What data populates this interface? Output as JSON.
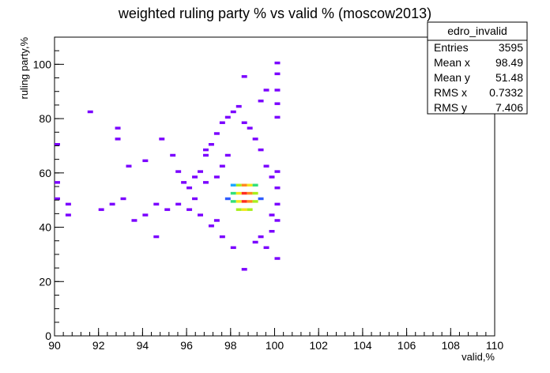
{
  "chart_data": {
    "type": "heatmap",
    "title": "weighted ruling party % vs valid % (moscow2013)",
    "xlabel": "valid,%",
    "ylabel": "ruling party,%",
    "xlim": [
      90,
      110
    ],
    "ylim": [
      0,
      110
    ],
    "x_ticks": [
      "90",
      "92",
      "94",
      "96",
      "98",
      "100",
      "102",
      "104",
      "106",
      "108",
      "110"
    ],
    "y_ticks": [
      "0",
      "20",
      "40",
      "60",
      "80",
      "100"
    ],
    "grid": false,
    "legend": "none",
    "bin_width_x": 0.25,
    "bin_width_y": 1.0,
    "cells": [
      [
        98.0,
        55,
        4
      ],
      [
        98.25,
        55,
        6
      ],
      [
        98.5,
        55,
        8
      ],
      [
        98.75,
        55,
        7
      ],
      [
        99.0,
        55,
        5
      ],
      [
        98.0,
        52,
        5
      ],
      [
        98.25,
        52,
        7
      ],
      [
        98.5,
        52,
        9
      ],
      [
        98.75,
        52,
        8
      ],
      [
        99.0,
        52,
        6
      ],
      [
        98.0,
        49,
        5
      ],
      [
        98.25,
        49,
        7
      ],
      [
        98.5,
        49,
        9
      ],
      [
        98.75,
        49,
        8
      ],
      [
        99.0,
        49,
        6
      ],
      [
        98.25,
        46,
        6
      ],
      [
        98.5,
        46,
        7
      ],
      [
        98.75,
        46,
        6
      ],
      [
        97.75,
        50,
        3
      ],
      [
        99.25,
        50,
        3
      ],
      [
        95.75,
        56,
        1
      ],
      [
        96.0,
        54,
        1
      ],
      [
        96.25,
        50,
        1
      ],
      [
        96.5,
        60,
        1
      ],
      [
        96.75,
        66,
        1
      ],
      [
        97.0,
        70,
        1
      ],
      [
        97.25,
        74,
        1
      ],
      [
        97.5,
        78,
        1
      ],
      [
        97.75,
        80,
        1
      ],
      [
        98.0,
        82,
        1
      ],
      [
        98.25,
        84,
        1
      ],
      [
        98.5,
        78,
        1
      ],
      [
        98.75,
        76,
        1
      ],
      [
        99.0,
        72,
        1
      ],
      [
        99.25,
        68,
        1
      ],
      [
        99.5,
        62,
        1
      ],
      [
        99.75,
        58,
        1
      ],
      [
        100.0,
        100,
        1
      ],
      [
        100.0,
        96,
        1
      ],
      [
        100.0,
        90,
        1
      ],
      [
        100.0,
        85,
        1
      ],
      [
        100.0,
        80,
        1
      ],
      [
        100.0,
        60,
        1
      ],
      [
        100.0,
        54,
        1
      ],
      [
        100.0,
        48,
        1
      ],
      [
        100.0,
        42,
        1
      ],
      [
        100.0,
        28,
        1
      ],
      [
        99.5,
        32,
        1
      ],
      [
        99.0,
        34,
        1
      ],
      [
        98.5,
        24,
        1
      ],
      [
        98.0,
        32,
        1
      ],
      [
        97.5,
        36,
        1
      ],
      [
        97.0,
        40,
        1
      ],
      [
        96.5,
        44,
        1
      ],
      [
        96.0,
        46,
        1
      ],
      [
        95.5,
        48,
        1
      ],
      [
        95.0,
        46,
        1
      ],
      [
        94.5,
        48,
        1
      ],
      [
        94.0,
        44,
        1
      ],
      [
        93.5,
        42,
        1
      ],
      [
        93.0,
        50,
        1
      ],
      [
        92.5,
        48,
        1
      ],
      [
        92.0,
        46,
        1
      ],
      [
        91.5,
        82,
        1
      ],
      [
        90.5,
        48,
        1
      ],
      [
        90.5,
        44,
        1
      ],
      [
        90.0,
        70,
        1
      ],
      [
        90.0,
        56,
        1
      ],
      [
        90.0,
        50,
        1
      ],
      [
        92.75,
        76,
        1
      ],
      [
        92.75,
        72,
        1
      ],
      [
        93.25,
        62,
        1
      ],
      [
        94.0,
        64,
        1
      ],
      [
        94.75,
        72,
        1
      ],
      [
        95.25,
        66,
        1
      ],
      [
        95.5,
        60,
        1
      ],
      [
        96.25,
        58,
        1
      ],
      [
        96.75,
        56,
        1
      ],
      [
        97.25,
        58,
        1
      ],
      [
        97.5,
        62,
        1
      ],
      [
        97.75,
        66,
        1
      ],
      [
        99.25,
        86,
        1
      ],
      [
        99.5,
        90,
        1
      ],
      [
        98.5,
        95,
        1
      ],
      [
        96.75,
        68,
        1
      ],
      [
        99.75,
        44,
        1
      ],
      [
        99.75,
        38,
        1
      ],
      [
        99.25,
        36,
        1
      ],
      [
        97.25,
        42,
        1
      ],
      [
        94.5,
        36,
        1
      ]
    ],
    "stats": {
      "name": "edro_invalid",
      "rows": [
        {
          "label": "Entries",
          "value": "3595"
        },
        {
          "label": "Mean x",
          "value": "98.49"
        },
        {
          "label": "Mean y",
          "value": "51.48"
        },
        {
          "label": "RMS x",
          "value": "0.7332"
        },
        {
          "label": "RMS y",
          "value": "7.406"
        }
      ]
    },
    "colors": {
      "background": "#ffffff",
      "axis": "#000000",
      "palette": [
        "#7a00ff",
        "#4a1cff",
        "#2f5cff",
        "#1ea8ff",
        "#19d8d6",
        "#33e07a",
        "#a8ef1d",
        "#f2e61c",
        "#ff8a1f",
        "#ff2f1f"
      ]
    }
  }
}
